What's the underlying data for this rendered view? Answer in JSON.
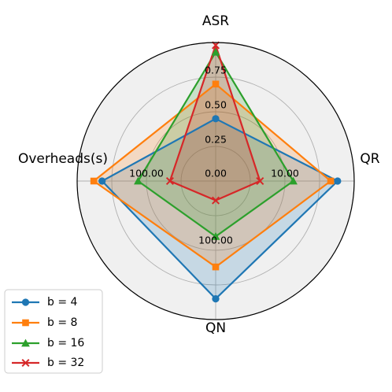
{
  "chart_data": {
    "type": "radar",
    "axes": [
      "ASR",
      "QR",
      "QN",
      "Overheads(s)"
    ],
    "radial_ticks": [
      "0.00",
      "0.25",
      "0.50",
      "0.75"
    ],
    "axis_tick_labels": {
      "QR": "10.00",
      "QN": "100.00",
      "Overheads(s)": "100.00"
    },
    "rlim": [
      0,
      1
    ],
    "grid": true,
    "legend_position": "lower-left",
    "series": [
      {
        "name": "b = 4",
        "color": "#1f77b4",
        "marker": "circle",
        "values": [
          0.45,
          0.88,
          0.85,
          0.82
        ]
      },
      {
        "name": "b = 8",
        "color": "#ff7f0e",
        "marker": "square",
        "values": [
          0.7,
          0.83,
          0.62,
          0.88
        ]
      },
      {
        "name": "b = 16",
        "color": "#2ca02c",
        "marker": "triangle",
        "values": [
          0.93,
          0.56,
          0.4,
          0.56
        ]
      },
      {
        "name": "b = 32",
        "color": "#d62728",
        "marker": "x",
        "values": [
          0.98,
          0.32,
          0.14,
          0.33
        ]
      }
    ]
  }
}
